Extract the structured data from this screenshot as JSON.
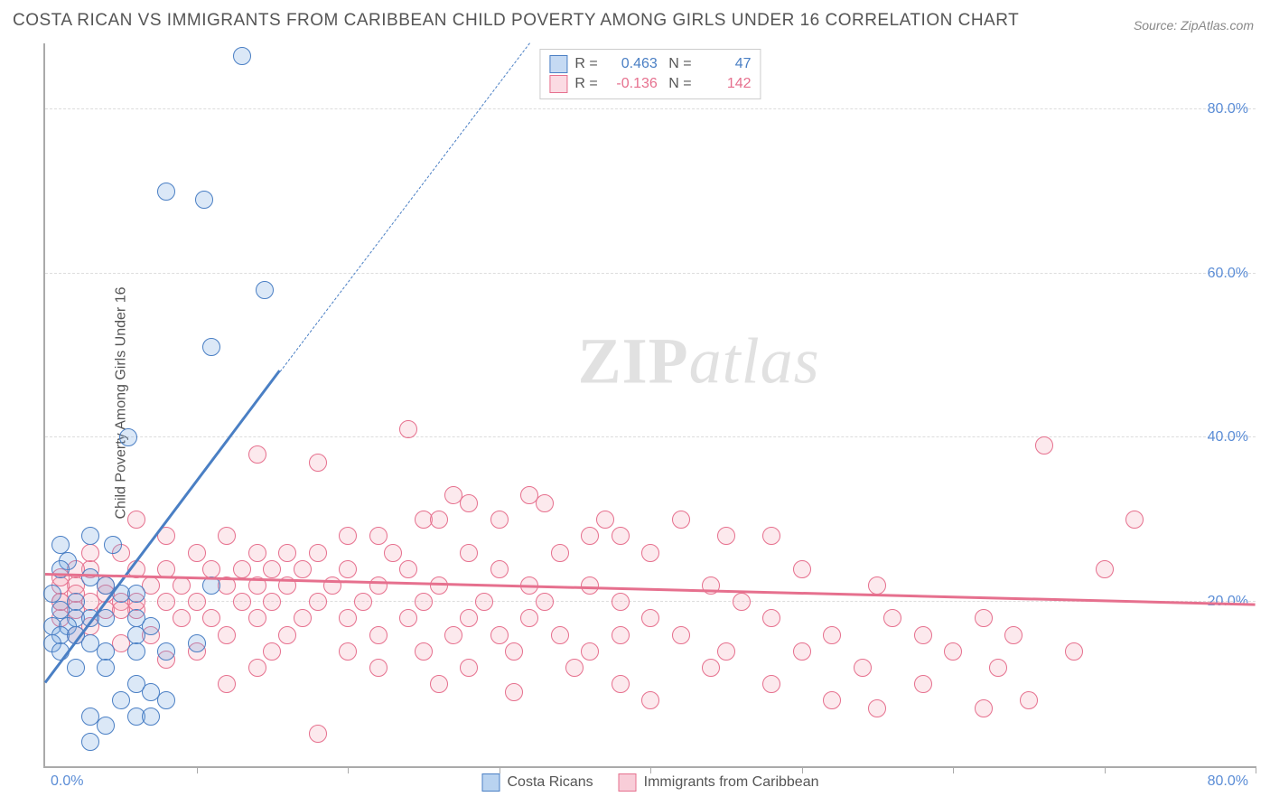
{
  "title": "COSTA RICAN VS IMMIGRANTS FROM CARIBBEAN CHILD POVERTY AMONG GIRLS UNDER 16 CORRELATION CHART",
  "source_prefix": "Source: ",
  "source_name": "ZipAtlas.com",
  "ylabel": "Child Poverty Among Girls Under 16",
  "watermark_a": "ZIP",
  "watermark_b": "atlas",
  "chart": {
    "type": "scatter",
    "xlim": [
      0,
      80
    ],
    "ylim": [
      0,
      88
    ],
    "x_min_label": "0.0%",
    "x_max_label": "80.0%",
    "y_ticks": [
      20,
      40,
      60,
      80
    ],
    "y_tick_labels": [
      "20.0%",
      "40.0%",
      "60.0%",
      "80.0%"
    ],
    "x_ticks": [
      10,
      20,
      30,
      40,
      50,
      60,
      70,
      80
    ],
    "grid_color": "#dddddd",
    "axis_color": "#aaaaaa",
    "tick_label_color": "#5b8dd6",
    "background_color": "#ffffff",
    "marker_radius": 9,
    "marker_border_width": 1.5,
    "marker_fill_opacity": 0.25,
    "series": [
      {
        "name": "Costa Ricans",
        "color": "#6fa3e0",
        "border_color": "#4a7fc4",
        "R": "0.463",
        "N": "47",
        "trend": {
          "x1": 0,
          "y1": 10,
          "x2": 15.5,
          "y2": 48,
          "width": 3,
          "dash_to_x": 32,
          "dash_to_y": 88
        },
        "points": [
          [
            13,
            86.5
          ],
          [
            8,
            70
          ],
          [
            10.5,
            69
          ],
          [
            14.5,
            58
          ],
          [
            11,
            51
          ],
          [
            5.5,
            40
          ],
          [
            3,
            28
          ],
          [
            1,
            27
          ],
          [
            4.5,
            27
          ],
          [
            1.5,
            25
          ],
          [
            3,
            23
          ],
          [
            4,
            22
          ],
          [
            1,
            24
          ],
          [
            0.5,
            21
          ],
          [
            2,
            20
          ],
          [
            5,
            21
          ],
          [
            6,
            21
          ],
          [
            1,
            19
          ],
          [
            2,
            18
          ],
          [
            3,
            18
          ],
          [
            0.5,
            17
          ],
          [
            1.5,
            17
          ],
          [
            4,
            18
          ],
          [
            6,
            18
          ],
          [
            11,
            22
          ],
          [
            6,
            16
          ],
          [
            7,
            17
          ],
          [
            1,
            16
          ],
          [
            2,
            16
          ],
          [
            0.5,
            15
          ],
          [
            3,
            15
          ],
          [
            4,
            14
          ],
          [
            6,
            14
          ],
          [
            8,
            14
          ],
          [
            10,
            15
          ],
          [
            2,
            12
          ],
          [
            4,
            12
          ],
          [
            6,
            10
          ],
          [
            7,
            9
          ],
          [
            5,
            8
          ],
          [
            8,
            8
          ],
          [
            3,
            6
          ],
          [
            4,
            5
          ],
          [
            6,
            6
          ],
          [
            7,
            6
          ],
          [
            3,
            3
          ],
          [
            1,
            14
          ]
        ]
      },
      {
        "name": "Immigrants from Caribbean",
        "color": "#f4a6b8",
        "border_color": "#e6708e",
        "R": "-0.136",
        "N": "142",
        "trend": {
          "x1": 0,
          "y1": 23.2,
          "x2": 80,
          "y2": 19.5,
          "width": 3
        },
        "points": [
          [
            24,
            41
          ],
          [
            66,
            39
          ],
          [
            14,
            38
          ],
          [
            18,
            37
          ],
          [
            27,
            33
          ],
          [
            28,
            32
          ],
          [
            32,
            33
          ],
          [
            33,
            32
          ],
          [
            6,
            30
          ],
          [
            25,
            30
          ],
          [
            26,
            30
          ],
          [
            30,
            30
          ],
          [
            42,
            30
          ],
          [
            72,
            30
          ],
          [
            8,
            28
          ],
          [
            12,
            28
          ],
          [
            20,
            28
          ],
          [
            22,
            28
          ],
          [
            36,
            28
          ],
          [
            37,
            30
          ],
          [
            38,
            28
          ],
          [
            45,
            28
          ],
          [
            48,
            28
          ],
          [
            5,
            26
          ],
          [
            10,
            26
          ],
          [
            14,
            26
          ],
          [
            16,
            26
          ],
          [
            18,
            26
          ],
          [
            23,
            26
          ],
          [
            28,
            26
          ],
          [
            34,
            26
          ],
          [
            40,
            26
          ],
          [
            70,
            24
          ],
          [
            3,
            24
          ],
          [
            6,
            24
          ],
          [
            8,
            24
          ],
          [
            11,
            24
          ],
          [
            13,
            24
          ],
          [
            15,
            24
          ],
          [
            17,
            24
          ],
          [
            20,
            24
          ],
          [
            24,
            24
          ],
          [
            30,
            24
          ],
          [
            50,
            24
          ],
          [
            2,
            22
          ],
          [
            4,
            22
          ],
          [
            7,
            22
          ],
          [
            9,
            22
          ],
          [
            12,
            22
          ],
          [
            14,
            22
          ],
          [
            16,
            22
          ],
          [
            19,
            22
          ],
          [
            22,
            22
          ],
          [
            26,
            22
          ],
          [
            32,
            22
          ],
          [
            36,
            22
          ],
          [
            44,
            22
          ],
          [
            55,
            22
          ],
          [
            1,
            20
          ],
          [
            3,
            20
          ],
          [
            5,
            20
          ],
          [
            8,
            20
          ],
          [
            10,
            20
          ],
          [
            13,
            20
          ],
          [
            15,
            20
          ],
          [
            18,
            20
          ],
          [
            21,
            20
          ],
          [
            25,
            20
          ],
          [
            29,
            20
          ],
          [
            33,
            20
          ],
          [
            38,
            20
          ],
          [
            46,
            20
          ],
          [
            2,
            19
          ],
          [
            4,
            19
          ],
          [
            6,
            19
          ],
          [
            9,
            18
          ],
          [
            11,
            18
          ],
          [
            14,
            18
          ],
          [
            17,
            18
          ],
          [
            20,
            18
          ],
          [
            24,
            18
          ],
          [
            28,
            18
          ],
          [
            32,
            18
          ],
          [
            40,
            18
          ],
          [
            48,
            18
          ],
          [
            56,
            18
          ],
          [
            62,
            18
          ],
          [
            3,
            17
          ],
          [
            7,
            16
          ],
          [
            12,
            16
          ],
          [
            16,
            16
          ],
          [
            22,
            16
          ],
          [
            27,
            16
          ],
          [
            30,
            16
          ],
          [
            34,
            16
          ],
          [
            38,
            16
          ],
          [
            42,
            16
          ],
          [
            52,
            16
          ],
          [
            58,
            16
          ],
          [
            64,
            16
          ],
          [
            5,
            15
          ],
          [
            10,
            14
          ],
          [
            15,
            14
          ],
          [
            20,
            14
          ],
          [
            25,
            14
          ],
          [
            31,
            14
          ],
          [
            36,
            14
          ],
          [
            45,
            14
          ],
          [
            50,
            14
          ],
          [
            60,
            14
          ],
          [
            68,
            14
          ],
          [
            8,
            13
          ],
          [
            14,
            12
          ],
          [
            22,
            12
          ],
          [
            28,
            12
          ],
          [
            35,
            12
          ],
          [
            44,
            12
          ],
          [
            54,
            12
          ],
          [
            63,
            12
          ],
          [
            12,
            10
          ],
          [
            26,
            10
          ],
          [
            38,
            10
          ],
          [
            48,
            10
          ],
          [
            58,
            10
          ],
          [
            31,
            9
          ],
          [
            40,
            8
          ],
          [
            52,
            8
          ],
          [
            65,
            8
          ],
          [
            18,
            4
          ],
          [
            55,
            7
          ],
          [
            62,
            7
          ],
          [
            1,
            22
          ],
          [
            2,
            24
          ],
          [
            3,
            26
          ],
          [
            1,
            18
          ],
          [
            2,
            16
          ],
          [
            1,
            20
          ],
          [
            4,
            21
          ],
          [
            5,
            19
          ],
          [
            6,
            20
          ],
          [
            1,
            23
          ],
          [
            2,
            21
          ]
        ]
      }
    ]
  },
  "legend_items": [
    {
      "label": "Costa Ricans",
      "fill": "#b9d3f0",
      "border": "#4a7fc4"
    },
    {
      "label": "Immigrants from Caribbean",
      "fill": "#f8cdd8",
      "border": "#e6708e"
    }
  ]
}
